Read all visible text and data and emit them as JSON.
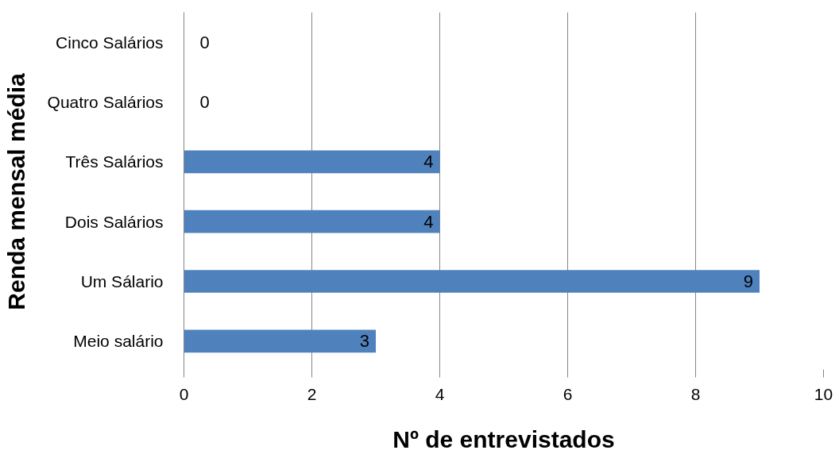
{
  "chart_data": {
    "type": "bar",
    "orientation": "horizontal",
    "categories": [
      "Cinco Salários",
      "Quatro Salários",
      "Três Salários",
      "Dois Salários",
      "Um Sálario",
      "Meio salário"
    ],
    "values": [
      0,
      0,
      4,
      4,
      9,
      3
    ],
    "color": "#4f81bd",
    "data_labels": true,
    "xlim": [
      0,
      10
    ],
    "xticks": [
      0,
      2,
      4,
      6,
      8,
      10
    ],
    "grid": "x",
    "xlabel": "Nº de entrevistados",
    "ylabel": "Renda mensal média"
  }
}
